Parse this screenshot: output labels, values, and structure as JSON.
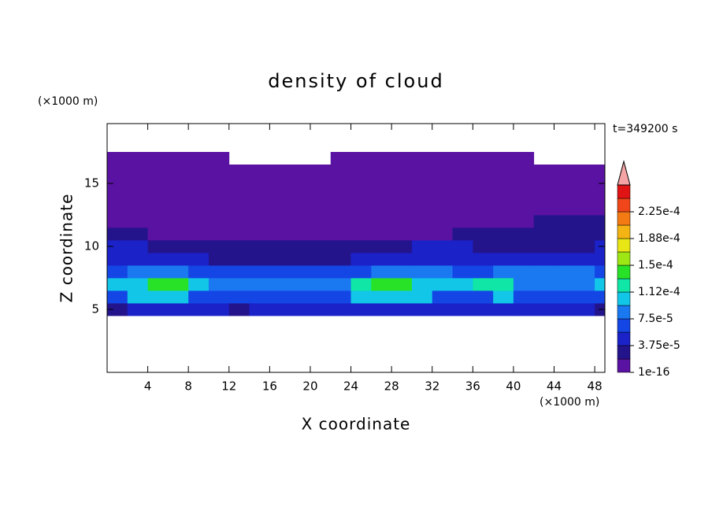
{
  "chart_data": {
    "type": "contour",
    "title": "density of cloud",
    "x_unit": "(×1000 m)",
    "y_unit": "(×1000 m)",
    "time_label": "t=349200 s",
    "xlabel": "X coordinate",
    "ylabel": "Z coordinate",
    "xlim": [
      0,
      49
    ],
    "ylim": [
      0,
      19.75
    ],
    "xticks": [
      4,
      8,
      12,
      16,
      20,
      24,
      28,
      32,
      36,
      40,
      44,
      48
    ],
    "yticks": [
      5,
      10,
      15
    ],
    "x": [
      1,
      3,
      5,
      7,
      9,
      11,
      13,
      15,
      17,
      19,
      21,
      23,
      25,
      27,
      29,
      31,
      33,
      35,
      37,
      39,
      41,
      43,
      45,
      47,
      49
    ],
    "z": [
      5,
      6,
      7,
      8,
      9,
      10,
      11,
      12,
      13,
      14,
      15,
      16,
      17
    ],
    "values": [
      [
        2.5e-05,
        4.5e-05,
        4.5e-05,
        4.5e-05,
        4.5e-05,
        4.5e-05,
        2.5e-05,
        4.5e-05,
        4.5e-05,
        4.5e-05,
        4.5e-05,
        4.5e-05,
        4.5e-05,
        4.5e-05,
        4.5e-05,
        4.5e-05,
        4.5e-05,
        4.5e-05,
        4.5e-05,
        4.5e-05,
        4.5e-05,
        4.5e-05,
        4.5e-05,
        4.5e-05,
        2.5e-05
      ],
      [
        6.5e-05,
        0.0001,
        0.0001,
        0.0001,
        6.5e-05,
        6.5e-05,
        6.5e-05,
        6.5e-05,
        6.5e-05,
        6.5e-05,
        6.5e-05,
        6.5e-05,
        0.0001,
        0.0001,
        0.0001,
        0.0001,
        6.5e-05,
        6.5e-05,
        6.5e-05,
        0.0001,
        6.5e-05,
        6.5e-05,
        6.5e-05,
        6.5e-05,
        6.5e-05
      ],
      [
        0.0001,
        0.0001,
        0.00014,
        0.00014,
        0.0001,
        8.5e-05,
        8.5e-05,
        8.5e-05,
        8.5e-05,
        8.5e-05,
        8.5e-05,
        8.5e-05,
        0.00012,
        0.00014,
        0.00014,
        0.0001,
        0.0001,
        0.0001,
        0.00012,
        0.00012,
        8.5e-05,
        8.5e-05,
        8.5e-05,
        8.5e-05,
        0.0001
      ],
      [
        6.5e-05,
        8.5e-05,
        8.5e-05,
        8.5e-05,
        6.5e-05,
        6.5e-05,
        6.5e-05,
        6.5e-05,
        6.5e-05,
        6.5e-05,
        6.5e-05,
        6.5e-05,
        6.5e-05,
        8.5e-05,
        8.5e-05,
        8.5e-05,
        8.5e-05,
        6.5e-05,
        6.5e-05,
        8.5e-05,
        8.5e-05,
        8.5e-05,
        8.5e-05,
        8.5e-05,
        6.5e-05
      ],
      [
        4.5e-05,
        4.5e-05,
        4.5e-05,
        4.5e-05,
        4.5e-05,
        2.5e-05,
        2.5e-05,
        2.5e-05,
        2.5e-05,
        2.5e-05,
        2.5e-05,
        2.5e-05,
        4.5e-05,
        4.5e-05,
        4.5e-05,
        4.5e-05,
        4.5e-05,
        4.5e-05,
        4.5e-05,
        4.5e-05,
        4.5e-05,
        4.5e-05,
        4.5e-05,
        4.5e-05,
        4.5e-05
      ],
      [
        4.5e-05,
        4.5e-05,
        2.5e-05,
        2.5e-05,
        2.5e-05,
        2.5e-05,
        2.5e-05,
        2.5e-05,
        2.5e-05,
        2.5e-05,
        2.5e-05,
        2.5e-05,
        2.5e-05,
        2.5e-05,
        2.5e-05,
        4.5e-05,
        4.5e-05,
        4.5e-05,
        2.5e-05,
        2.5e-05,
        2.5e-05,
        2.5e-05,
        2.5e-05,
        2.5e-05,
        4.5e-05
      ],
      [
        2.5e-05,
        2.5e-05,
        5e-06,
        5e-06,
        5e-06,
        5e-06,
        5e-06,
        5e-06,
        5e-06,
        5e-06,
        5e-06,
        5e-06,
        5e-06,
        5e-06,
        5e-06,
        5e-06,
        5e-06,
        2.5e-05,
        2.5e-05,
        2.5e-05,
        2.5e-05,
        2.5e-05,
        2.5e-05,
        2.5e-05,
        2.5e-05
      ],
      [
        5e-06,
        5e-06,
        5e-06,
        5e-06,
        5e-06,
        5e-06,
        5e-06,
        5e-06,
        5e-06,
        5e-06,
        5e-06,
        5e-06,
        5e-06,
        5e-06,
        5e-06,
        5e-06,
        5e-06,
        5e-06,
        5e-06,
        5e-06,
        5e-06,
        2.5e-05,
        2.5e-05,
        2.5e-05,
        2.5e-05
      ],
      [
        5e-06,
        5e-06,
        5e-06,
        5e-06,
        5e-06,
        5e-06,
        5e-06,
        5e-06,
        5e-06,
        5e-06,
        5e-06,
        5e-06,
        5e-06,
        5e-06,
        5e-06,
        5e-06,
        5e-06,
        5e-06,
        5e-06,
        5e-06,
        5e-06,
        5e-06,
        5e-06,
        5e-06,
        5e-06
      ],
      [
        5e-06,
        5e-06,
        5e-06,
        5e-06,
        5e-06,
        5e-06,
        5e-06,
        5e-06,
        5e-06,
        5e-06,
        5e-06,
        5e-06,
        5e-06,
        5e-06,
        5e-06,
        5e-06,
        5e-06,
        5e-06,
        5e-06,
        5e-06,
        5e-06,
        5e-06,
        5e-06,
        5e-06,
        5e-06
      ],
      [
        5e-06,
        5e-06,
        5e-06,
        5e-06,
        5e-06,
        5e-06,
        5e-06,
        5e-06,
        5e-06,
        5e-06,
        5e-06,
        5e-06,
        5e-06,
        5e-06,
        5e-06,
        5e-06,
        5e-06,
        5e-06,
        5e-06,
        5e-06,
        5e-06,
        5e-06,
        5e-06,
        5e-06,
        5e-06
      ],
      [
        5e-06,
        5e-06,
        5e-06,
        5e-06,
        5e-06,
        5e-06,
        5e-06,
        5e-06,
        5e-06,
        5e-06,
        5e-06,
        5e-06,
        5e-06,
        5e-06,
        5e-06,
        5e-06,
        5e-06,
        5e-06,
        5e-06,
        5e-06,
        5e-06,
        5e-06,
        5e-06,
        5e-06,
        5e-06
      ],
      [
        5e-06,
        5e-06,
        5e-06,
        5e-06,
        5e-06,
        5e-06,
        null,
        null,
        null,
        null,
        null,
        5e-06,
        5e-06,
        5e-06,
        5e-06,
        5e-06,
        5e-06,
        5e-06,
        5e-06,
        5e-06,
        5e-06,
        null,
        null,
        null,
        null
      ]
    ],
    "levels": [
      1e-16,
      1.875e-05,
      3.75e-05,
      5.625e-05,
      7.5e-05,
      9.375e-05,
      0.0001125,
      0.00013125,
      0.00015,
      0.00016875,
      0.0001875,
      0.00020625,
      0.000225,
      0.00024375,
      0.0002625
    ],
    "colors": [
      "#5a12a2",
      "#24148c",
      "#1a22c8",
      "#1446e6",
      "#1a78f0",
      "#12c6e8",
      "#10e6a6",
      "#28e228",
      "#9ee614",
      "#e8e614",
      "#f4b414",
      "#f47a14",
      "#f0461a",
      "#e01414"
    ],
    "extend_color": "#f4a4a4",
    "colorbar_ticks": [
      {
        "value": 1e-16,
        "label": "1e-16"
      },
      {
        "value": 3.75e-05,
        "label": "3.75e-5"
      },
      {
        "value": 7.5e-05,
        "label": "7.5e-5"
      },
      {
        "value": 0.0001125,
        "label": "1.12e-4"
      },
      {
        "value": 0.00015,
        "label": "1.5e-4"
      },
      {
        "value": 0.0001875,
        "label": "1.88e-4"
      },
      {
        "value": 0.000225,
        "label": "2.25e-4"
      }
    ]
  }
}
